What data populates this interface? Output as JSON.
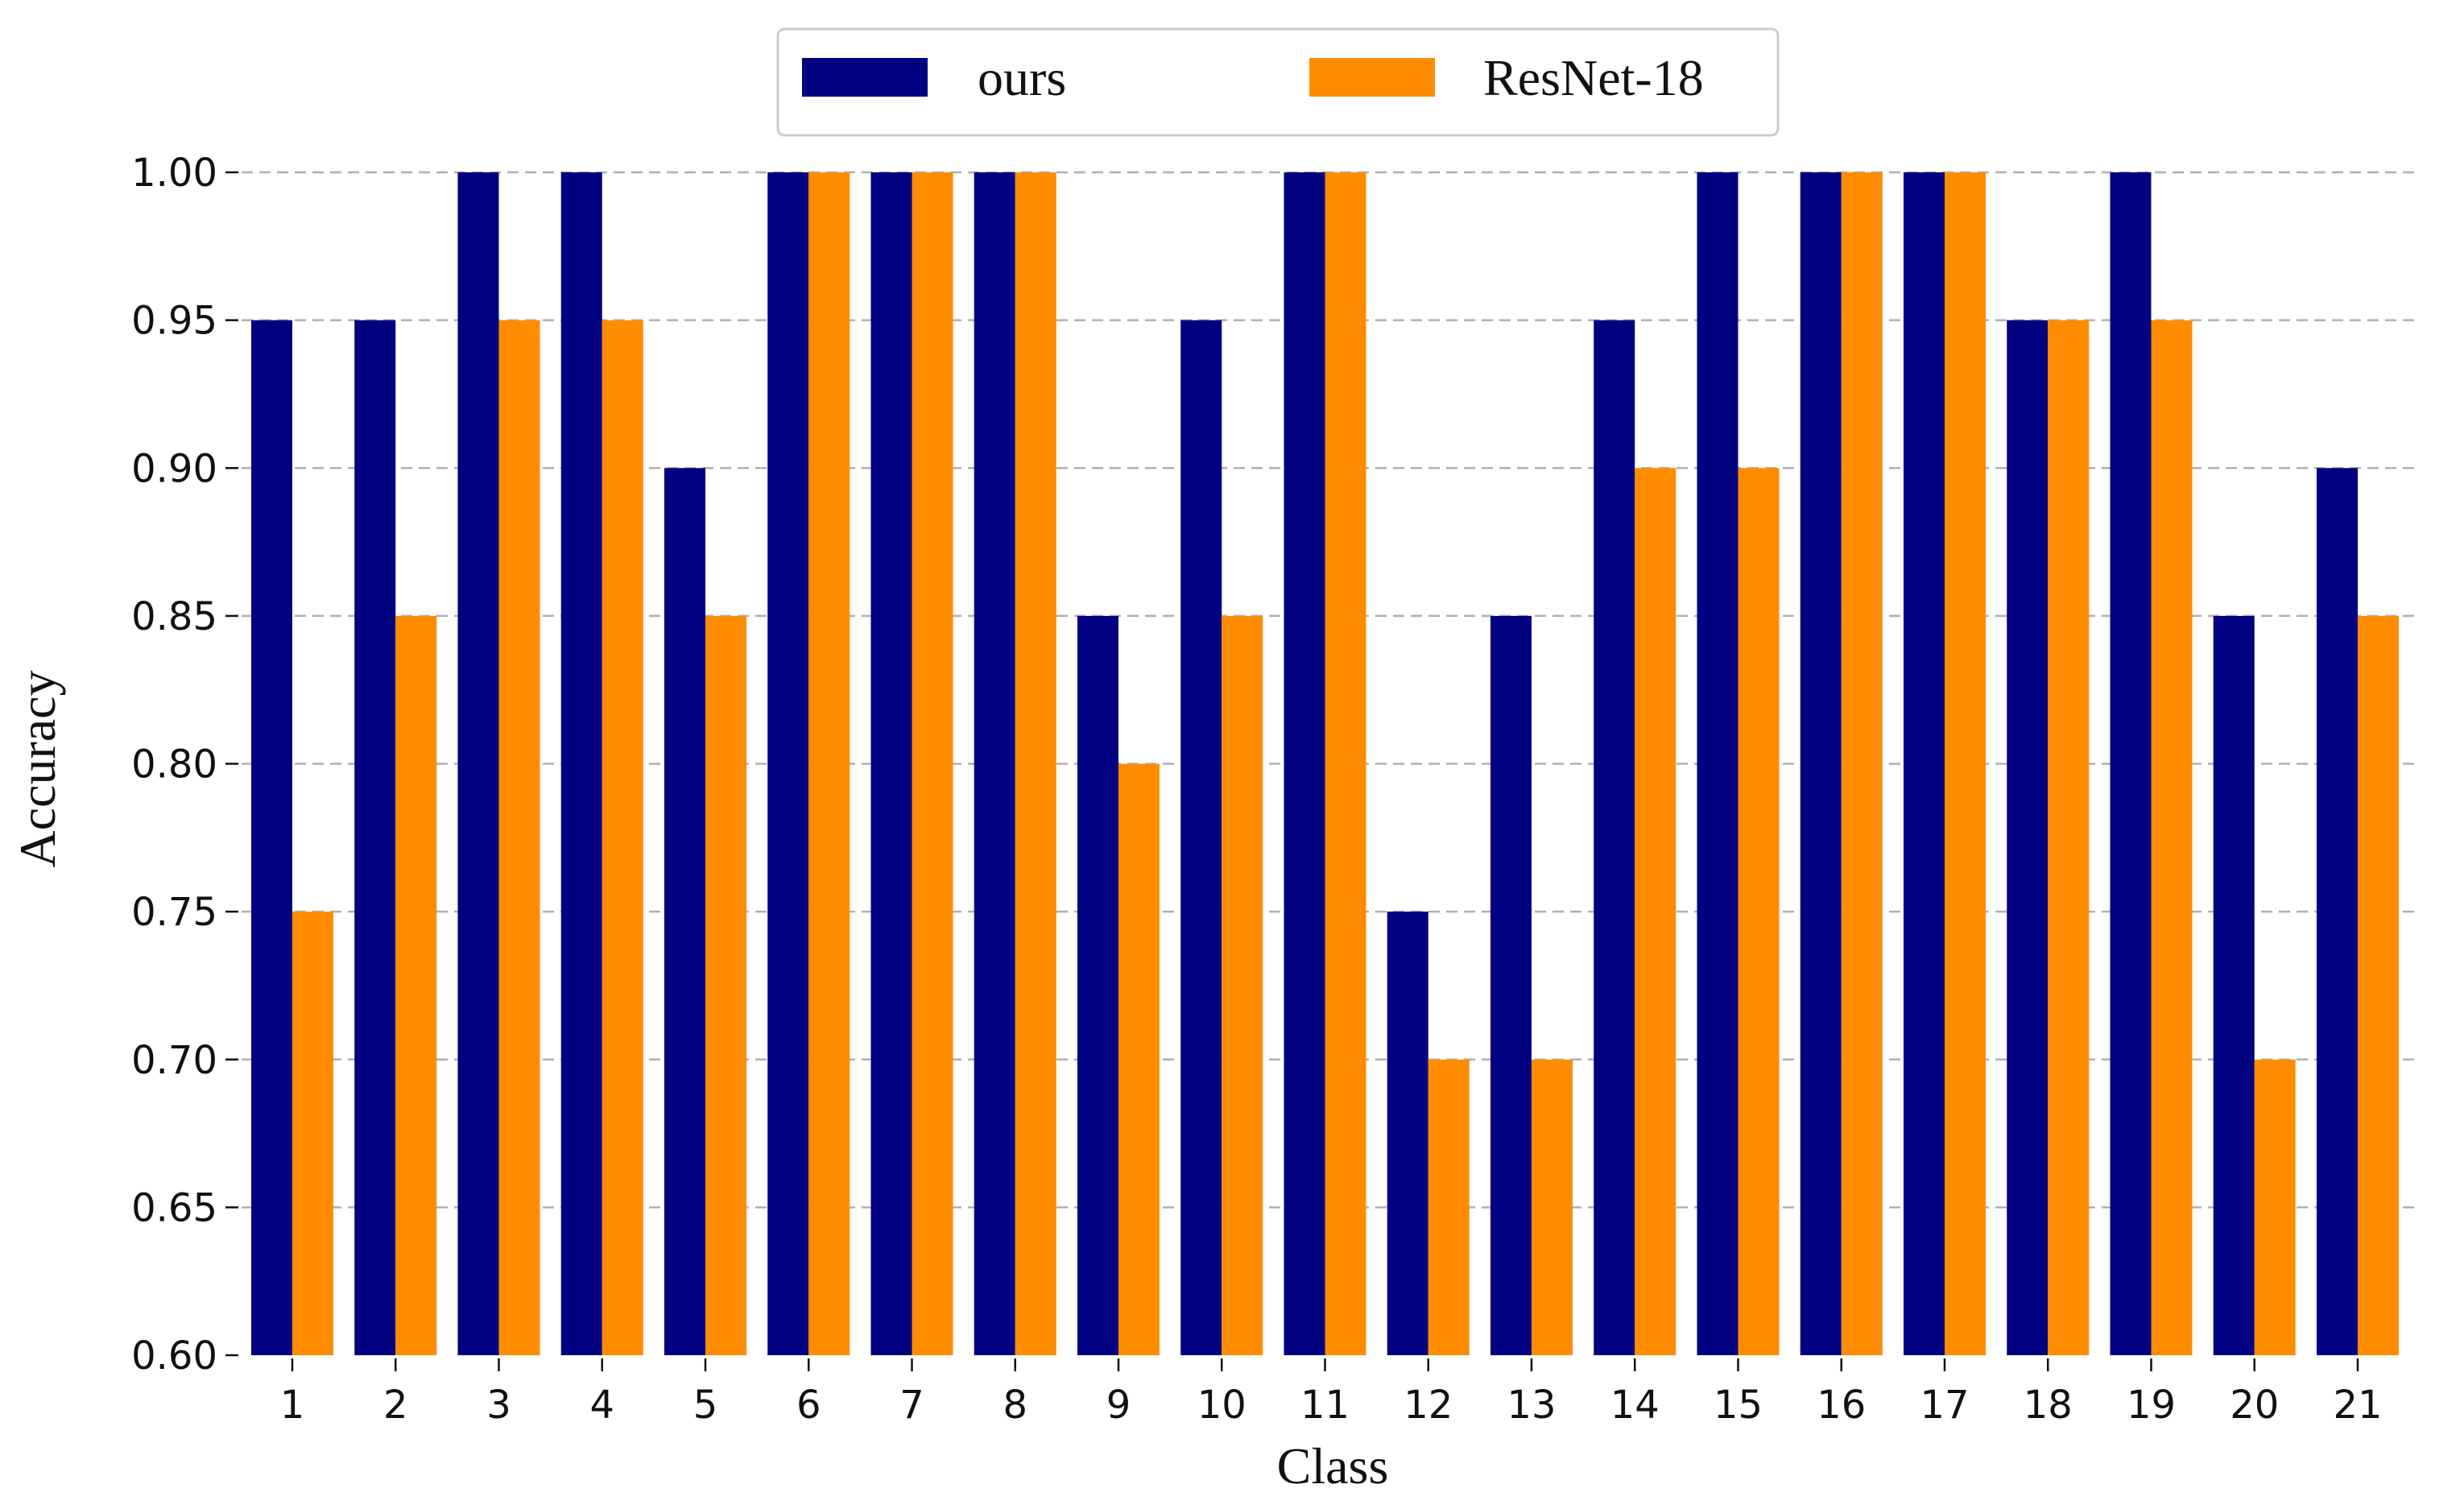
{
  "chart_data": {
    "type": "bar",
    "title": "",
    "xlabel": "Class",
    "ylabel": "Accuracy",
    "ylim": [
      0.6,
      1.0
    ],
    "yticks": [
      "0.60",
      "0.65",
      "0.70",
      "0.75",
      "0.80",
      "0.85",
      "0.90",
      "0.95",
      "1.00"
    ],
    "grid": "horizontal dashed",
    "legend_position": "top-center",
    "categories": [
      "1",
      "2",
      "3",
      "4",
      "5",
      "6",
      "7",
      "8",
      "9",
      "10",
      "11",
      "12",
      "13",
      "14",
      "15",
      "16",
      "17",
      "18",
      "19",
      "20",
      "21"
    ],
    "series": [
      {
        "name": "ours",
        "color": "#000080",
        "values": [
          0.95,
          0.95,
          1.0,
          1.0,
          0.9,
          1.0,
          1.0,
          1.0,
          0.85,
          0.95,
          1.0,
          0.75,
          0.85,
          0.95,
          1.0,
          1.0,
          1.0,
          0.95,
          1.0,
          0.85,
          0.9
        ]
      },
      {
        "name": "ResNet-18",
        "color": "#ff8c00",
        "values": [
          0.75,
          0.85,
          0.95,
          0.95,
          0.85,
          1.0,
          1.0,
          1.0,
          0.8,
          0.85,
          1.0,
          0.7,
          0.7,
          0.9,
          0.9,
          1.0,
          1.0,
          0.95,
          0.95,
          0.7,
          0.85
        ]
      }
    ]
  }
}
